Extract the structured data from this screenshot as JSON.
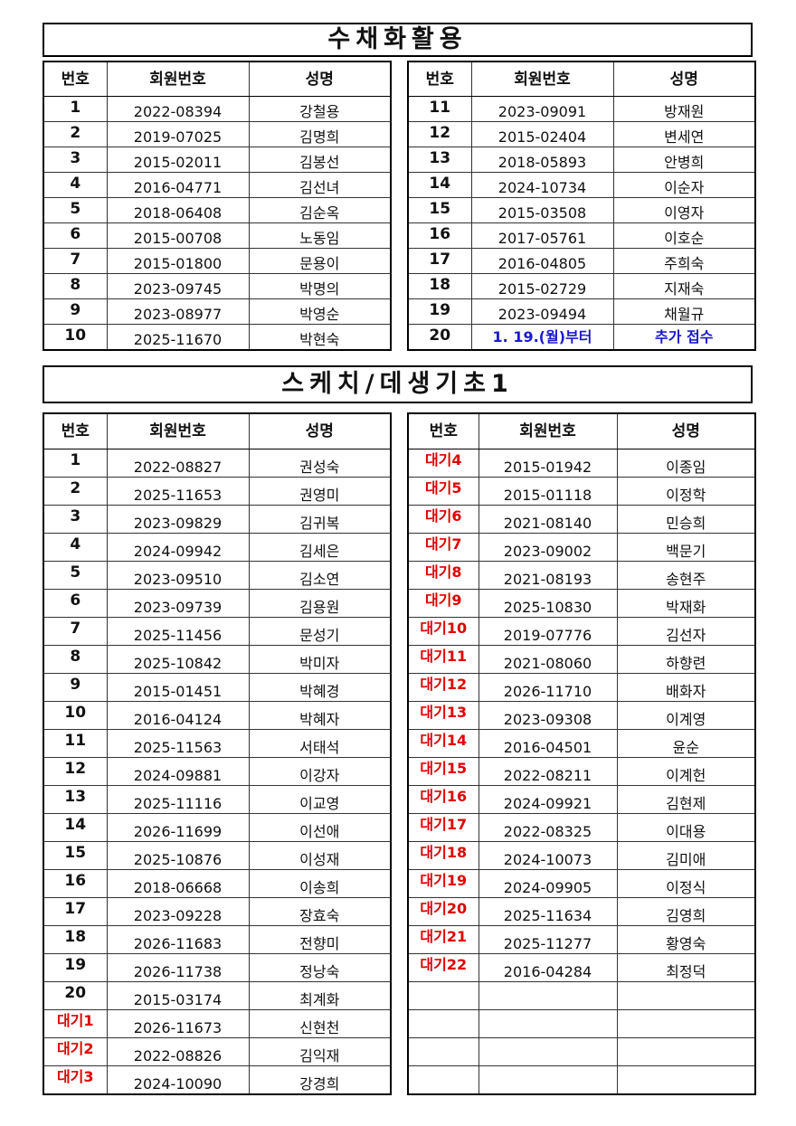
{
  "section1": {
    "title": "수채화활용",
    "headers": [
      "번호",
      "회원번호",
      "성명"
    ],
    "left_rows": [
      [
        "1",
        "2022-08394",
        "강철용"
      ],
      [
        "2",
        "2019-07025",
        "김명희"
      ],
      [
        "3",
        "2015-02011",
        "김봉선"
      ],
      [
        "4",
        "2016-04771",
        "김선녀"
      ],
      [
        "5",
        "2018-06408",
        "김순옥"
      ],
      [
        "6",
        "2015-00708",
        "노동임"
      ],
      [
        "7",
        "2015-01800",
        "문용이"
      ],
      [
        "8",
        "2023-09745",
        "박명의"
      ],
      [
        "9",
        "2023-08977",
        "박영순"
      ],
      [
        "10",
        "2025-11670",
        "박현숙"
      ]
    ],
    "right_rows": [
      [
        "11",
        "2023-09091",
        "방재원"
      ],
      [
        "12",
        "2015-02404",
        "변세연"
      ],
      [
        "13",
        "2018-05893",
        "안병희"
      ],
      [
        "14",
        "2024-10734",
        "이순자"
      ],
      [
        "15",
        "2015-03508",
        "이영자"
      ],
      [
        "16",
        "2017-05761",
        "이호순"
      ],
      [
        "17",
        "2016-04805",
        "주희숙"
      ],
      [
        "18",
        "2015-02729",
        "지재숙"
      ],
      [
        "19",
        "2023-09494",
        "채월규"
      ],
      [
        "20",
        "1. 19.(월)부터",
        "추가 접수"
      ]
    ],
    "note_color": "#1a1acc"
  },
  "section2": {
    "title": "스케치/데생기초1",
    "headers": [
      "번호",
      "회원번호",
      "성명"
    ],
    "left_rows": [
      [
        "1",
        "2022-08827",
        "권성숙"
      ],
      [
        "2",
        "2025-11653",
        "권영미"
      ],
      [
        "3",
        "2023-09829",
        "김귀복"
      ],
      [
        "4",
        "2024-09942",
        "김세은"
      ],
      [
        "5",
        "2023-09510",
        "김소연"
      ],
      [
        "6",
        "2023-09739",
        "김용원"
      ],
      [
        "7",
        "2025-11456",
        "문성기"
      ],
      [
        "8",
        "2025-10842",
        "박미자"
      ],
      [
        "9",
        "2015-01451",
        "박혜경"
      ],
      [
        "10",
        "2016-04124",
        "박혜자"
      ],
      [
        "11",
        "2025-11563",
        "서태석"
      ],
      [
        "12",
        "2024-09881",
        "이강자"
      ],
      [
        "13",
        "2025-11116",
        "이교영"
      ],
      [
        "14",
        "2026-11699",
        "이선애"
      ],
      [
        "15",
        "2025-10876",
        "이성재"
      ],
      [
        "16",
        "2018-06668",
        "이송희"
      ],
      [
        "17",
        "2023-09228",
        "장효숙"
      ],
      [
        "18",
        "2026-11683",
        "전향미"
      ],
      [
        "19",
        "2026-11738",
        "정낭숙"
      ],
      [
        "20",
        "2015-03174",
        "최계화"
      ],
      [
        "대기1",
        "2026-11673",
        "신현천"
      ],
      [
        "대기2",
        "2022-08826",
        "김익재"
      ],
      [
        "대기3",
        "2024-10090",
        "강경희"
      ]
    ],
    "right_rows": [
      [
        "대기4",
        "2015-01942",
        "이종임"
      ],
      [
        "대기5",
        "2015-01118",
        "이정학"
      ],
      [
        "대기6",
        "2021-08140",
        "민승희"
      ],
      [
        "대기7",
        "2023-09002",
        "백문기"
      ],
      [
        "대기8",
        "2021-08193",
        "송현주"
      ],
      [
        "대기9",
        "2025-10830",
        "박재화"
      ],
      [
        "대기10",
        "2019-07776",
        "김선자"
      ],
      [
        "대기11",
        "2021-08060",
        "하향련"
      ],
      [
        "대기12",
        "2026-11710",
        "배화자"
      ],
      [
        "대기13",
        "2023-09308",
        "이계영"
      ],
      [
        "대기14",
        "2016-04501",
        "윤순"
      ],
      [
        "대기15",
        "2022-08211",
        "이계헌"
      ],
      [
        "대기16",
        "2024-09921",
        "김현제"
      ],
      [
        "대기17",
        "2022-08325",
        "이대용"
      ],
      [
        "대기18",
        "2024-10073",
        "김미애"
      ],
      [
        "대기19",
        "2024-09905",
        "이정식"
      ],
      [
        "대기20",
        "2025-11634",
        "김영희"
      ],
      [
        "대기21",
        "2025-11277",
        "황영숙"
      ],
      [
        "대기22",
        "2016-04284",
        "최정덕"
      ],
      [
        "",
        "",
        ""
      ],
      [
        "",
        "",
        ""
      ],
      [
        "",
        "",
        ""
      ],
      [
        "",
        "",
        ""
      ]
    ],
    "waitlist_color": "#e00000"
  }
}
